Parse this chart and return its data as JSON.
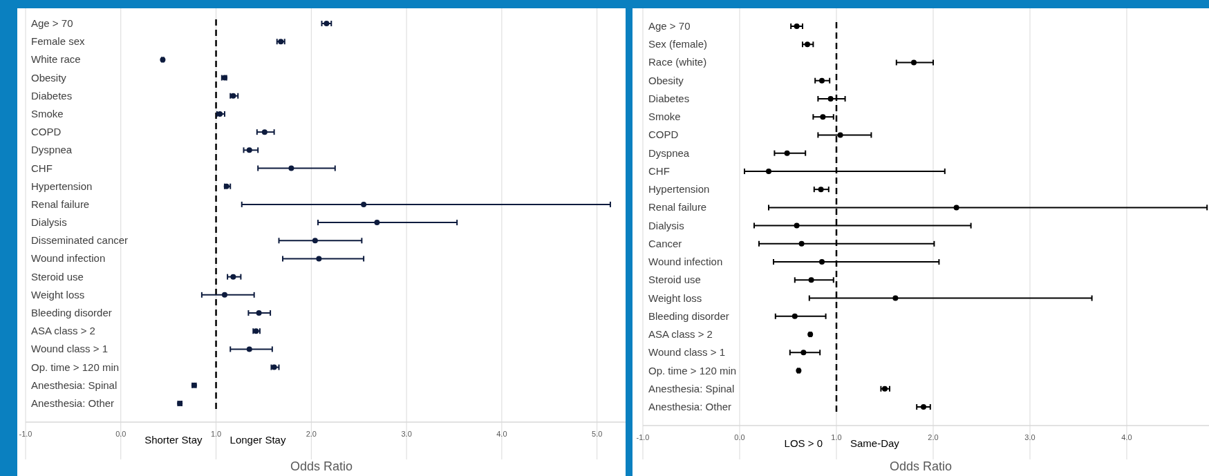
{
  "chart_data": [
    {
      "type": "scatter",
      "orientation": "horizontal",
      "xlabel": "Odds Ratio",
      "categories": [
        "Age > 70",
        "Female sex",
        "White race",
        "Obesity",
        "Diabetes",
        "Smoke",
        "COPD",
        "Dyspnea",
        "CHF",
        "Hypertension",
        "Renal failure",
        "Dialysis",
        "Disseminated cancer",
        "Wound infection",
        "Steroid use",
        "Weight loss",
        "Bleeding disorder",
        "ASA class > 2",
        "Wound class > 1",
        "Op. time > 120 min",
        "Anesthesia: Spinal",
        "Anesthesia: Other"
      ],
      "series": [
        {
          "color": "#0d1b3e",
          "values": [
            2.16,
            1.68,
            0.44,
            1.09,
            1.18,
            1.04,
            1.51,
            1.35,
            1.79,
            1.11,
            2.55,
            2.69,
            2.04,
            2.08,
            1.18,
            1.09,
            1.45,
            1.42,
            1.35,
            1.61,
            0.77,
            0.62
          ],
          "errors": [
            [
              2.11,
              2.21
            ],
            [
              1.64,
              1.72
            ],
            [
              0.43,
              0.45
            ],
            [
              1.06,
              1.11
            ],
            [
              1.15,
              1.23
            ],
            [
              1.01,
              1.09
            ],
            [
              1.43,
              1.61
            ],
            [
              1.29,
              1.44
            ],
            [
              1.44,
              2.25
            ],
            [
              1.09,
              1.15
            ],
            [
              1.27,
              5.14
            ],
            [
              2.07,
              3.53
            ],
            [
              1.66,
              2.53
            ],
            [
              1.7,
              2.55
            ],
            [
              1.12,
              1.26
            ],
            [
              0.85,
              1.4
            ],
            [
              1.34,
              1.57
            ],
            [
              1.39,
              1.46
            ],
            [
              1.15,
              1.59
            ],
            [
              1.58,
              1.66
            ],
            [
              0.75,
              0.79
            ],
            [
              0.6,
              0.64
            ]
          ]
        }
      ],
      "xlim": [
        -1,
        5.3
      ],
      "xticks": [
        {
          "value": -1,
          "label": "-1.0"
        },
        {
          "value": 0,
          "label": "0.0"
        },
        {
          "value": 1,
          "label": "1.0"
        },
        {
          "value": 2,
          "label": "2.0"
        },
        {
          "value": 3,
          "label": "3.0"
        },
        {
          "value": 4,
          "label": "4.0"
        },
        {
          "value": 5,
          "label": "5.0"
        }
      ],
      "grid": "x",
      "marker": "circle",
      "ref_lines": [
        {
          "axis": "x",
          "value": 1,
          "color": "#000000",
          "line_style": "dashed"
        }
      ],
      "annotations": [
        "Shorter Stay",
        "Longer Stay"
      ]
    },
    {
      "type": "scatter",
      "orientation": "horizontal",
      "xlabel": "Odds Ratio",
      "categories": [
        "Age > 70",
        "Sex (female)",
        "Race (white)",
        "Obesity",
        "Diabetes",
        "Smoke",
        "COPD",
        "Dyspnea",
        "CHF",
        "Hypertension",
        "Renal failure",
        "Dialysis",
        "Cancer",
        "Wound infection",
        "Steroid use",
        "Weight loss",
        "Bleeding disorder",
        "ASA class > 2",
        "Wound class > 1",
        "Op. time > 120 min",
        "Anesthesia: Spinal",
        "Anesthesia: Other"
      ],
      "series": [
        {
          "color": "#000000",
          "values": [
            0.59,
            0.7,
            1.8,
            0.85,
            0.94,
            0.86,
            1.04,
            0.49,
            0.3,
            0.84,
            2.24,
            0.59,
            0.64,
            0.85,
            0.74,
            1.61,
            0.57,
            0.73,
            0.66,
            0.61,
            1.5,
            1.9
          ],
          "errors": [
            [
              0.53,
              0.65
            ],
            [
              0.65,
              0.76
            ],
            [
              1.62,
              2.0
            ],
            [
              0.78,
              0.93
            ],
            [
              0.81,
              1.09
            ],
            [
              0.76,
              0.97
            ],
            [
              0.81,
              1.36
            ],
            [
              0.36,
              0.68
            ],
            [
              0.05,
              2.12
            ],
            [
              0.77,
              0.92
            ],
            [
              0.3,
              4.83
            ],
            [
              0.15,
              2.39
            ],
            [
              0.2,
              2.01
            ],
            [
              0.35,
              2.06
            ],
            [
              0.57,
              0.97
            ],
            [
              0.72,
              3.64
            ],
            [
              0.37,
              0.89
            ],
            [
              0.72,
              0.74
            ],
            [
              0.52,
              0.83
            ],
            [
              0.6,
              0.62
            ],
            [
              1.46,
              1.55
            ],
            [
              1.83,
              1.97
            ]
          ]
        }
      ],
      "xlim": [
        -1,
        4.85
      ],
      "xticks": [
        {
          "value": -1,
          "label": "-1.0"
        },
        {
          "value": 0,
          "label": "0.0"
        },
        {
          "value": 1,
          "label": "1.0"
        },
        {
          "value": 2,
          "label": "2.0"
        },
        {
          "value": 3,
          "label": "3.0"
        },
        {
          "value": 4,
          "label": "4.0"
        }
      ],
      "grid": "x",
      "marker": "circle",
      "ref_lines": [
        {
          "axis": "x",
          "value": 1,
          "color": "#000000",
          "line_style": "dashed"
        }
      ],
      "annotations": [
        "LOS > 0",
        "Same-Day"
      ]
    }
  ]
}
